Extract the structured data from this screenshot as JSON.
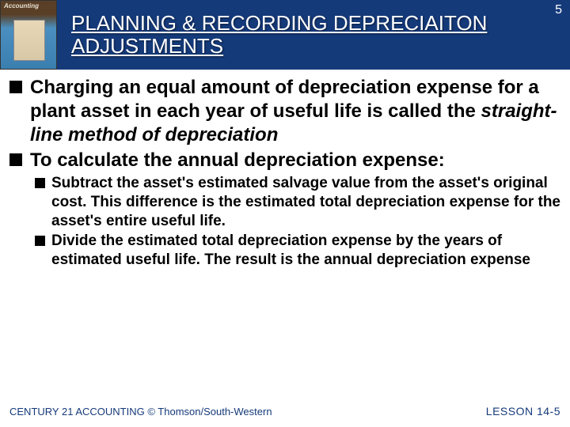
{
  "header": {
    "book_label": "Accounting",
    "title": "PLANNING & RECORDING DEPRECIAITON ADJUSTMENTS",
    "page_number": "5"
  },
  "bullets": {
    "b1_pre": "Charging an equal amount of depreciation expense for a plant asset in each year of useful life is called the ",
    "b1_italic": "straight-line method of depreciation",
    "b2": "To calculate the annual depreciation expense:",
    "sub1": "Subtract the asset's estimated salvage value from the asset's original cost. This difference is the estimated total depreciation expense for the asset's entire useful life.",
    "sub2": "Divide the estimated total depreciation expense by the years of estimated useful life. The result is the annual depreciation expense"
  },
  "footer": {
    "left": "CENTURY 21 ACCOUNTING © Thomson/South-Western",
    "right": "LESSON  14-5"
  },
  "colors": {
    "header_bg": "#153a7a",
    "footer_text": "#153a7a",
    "body_text": "#000000",
    "background": "#ffffff"
  }
}
